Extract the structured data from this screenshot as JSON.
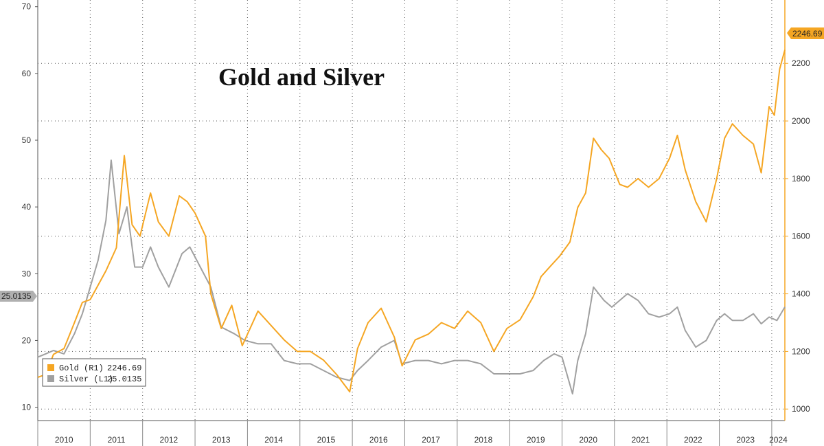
{
  "chart_data": {
    "type": "line",
    "title": "Gold and Silver",
    "x_categories": [
      "2010",
      "2011",
      "2012",
      "2013",
      "2014",
      "2015",
      "2016",
      "2017",
      "2018",
      "2019",
      "2020",
      "2021",
      "2022",
      "2023",
      "2024"
    ],
    "x_range": [
      2010,
      2024.25
    ],
    "left_axis": {
      "label": "",
      "ylim": [
        8,
        71
      ],
      "ticks": [
        10,
        20,
        30,
        40,
        50,
        60,
        70
      ]
    },
    "right_axis": {
      "label": "",
      "ylim": [
        960,
        2420
      ],
      "ticks": [
        1000,
        1200,
        1400,
        1600,
        1800,
        2000,
        2200
      ]
    },
    "legend_position": "bottom-left",
    "series": [
      {
        "name": "Gold (R1)",
        "axis": "right",
        "color": "#f5a623",
        "last_value": "2246.69",
        "x": [
          2010.0,
          2010.15,
          2010.3,
          2010.5,
          2010.7,
          2010.85,
          2011.0,
          2011.3,
          2011.5,
          2011.65,
          2011.8,
          2011.95,
          2012.15,
          2012.3,
          2012.5,
          2012.7,
          2012.85,
          2013.0,
          2013.2,
          2013.3,
          2013.5,
          2013.7,
          2013.9,
          2014.2,
          2014.45,
          2014.7,
          2014.95,
          2015.2,
          2015.45,
          2015.7,
          2015.95,
          2016.1,
          2016.3,
          2016.55,
          2016.8,
          2016.95,
          2017.2,
          2017.45,
          2017.7,
          2017.95,
          2018.2,
          2018.45,
          2018.7,
          2018.95,
          2019.2,
          2019.45,
          2019.6,
          2019.8,
          2019.95,
          2020.15,
          2020.3,
          2020.45,
          2020.6,
          2020.75,
          2020.9,
          2021.1,
          2021.25,
          2021.45,
          2021.65,
          2021.85,
          2022.05,
          2022.2,
          2022.35,
          2022.55,
          2022.75,
          2022.95,
          2023.1,
          2023.25,
          2023.45,
          2023.65,
          2023.8,
          2023.95,
          2024.05,
          2024.15,
          2024.25
        ],
        "values": [
          1110,
          1120,
          1190,
          1210,
          1300,
          1370,
          1380,
          1480,
          1560,
          1880,
          1640,
          1600,
          1750,
          1650,
          1600,
          1740,
          1720,
          1680,
          1600,
          1400,
          1280,
          1360,
          1220,
          1340,
          1290,
          1240,
          1200,
          1200,
          1170,
          1120,
          1060,
          1210,
          1300,
          1350,
          1250,
          1150,
          1240,
          1260,
          1300,
          1280,
          1340,
          1300,
          1200,
          1280,
          1310,
          1390,
          1460,
          1500,
          1530,
          1580,
          1700,
          1750,
          1940,
          1900,
          1870,
          1780,
          1770,
          1800,
          1770,
          1800,
          1870,
          1950,
          1830,
          1720,
          1650,
          1800,
          1940,
          1990,
          1950,
          1920,
          1820,
          2050,
          2020,
          2180,
          2246.69
        ]
      },
      {
        "name": "Silver (L1)",
        "axis": "left",
        "color": "#a0a0a0",
        "last_value": "25.0135",
        "x": [
          2010.0,
          2010.15,
          2010.3,
          2010.5,
          2010.7,
          2010.85,
          2011.0,
          2011.15,
          2011.3,
          2011.4,
          2011.55,
          2011.7,
          2011.85,
          2012.0,
          2012.15,
          2012.3,
          2012.5,
          2012.75,
          2012.9,
          2013.1,
          2013.3,
          2013.5,
          2013.75,
          2013.95,
          2014.2,
          2014.45,
          2014.7,
          2014.95,
          2015.2,
          2015.45,
          2015.7,
          2015.95,
          2016.1,
          2016.3,
          2016.55,
          2016.8,
          2016.95,
          2017.2,
          2017.45,
          2017.7,
          2017.95,
          2018.2,
          2018.45,
          2018.7,
          2018.95,
          2019.2,
          2019.45,
          2019.65,
          2019.85,
          2020.0,
          2020.2,
          2020.3,
          2020.45,
          2020.6,
          2020.8,
          2020.95,
          2021.1,
          2021.25,
          2021.45,
          2021.65,
          2021.85,
          2022.05,
          2022.2,
          2022.35,
          2022.55,
          2022.75,
          2022.95,
          2023.1,
          2023.25,
          2023.45,
          2023.65,
          2023.8,
          2023.95,
          2024.1,
          2024.25
        ],
        "values": [
          17.5,
          18,
          18.5,
          18,
          21,
          24,
          28,
          32,
          38,
          47,
          36,
          40,
          31,
          31,
          34,
          31,
          28,
          33,
          34,
          31,
          28,
          22,
          21,
          20,
          19.5,
          19.5,
          17,
          16.5,
          16.5,
          15.5,
          14.5,
          14,
          15.5,
          17,
          19,
          20,
          16.5,
          17,
          17,
          16.5,
          17,
          17,
          16.5,
          15,
          15,
          15,
          15.5,
          17,
          18,
          17.5,
          12,
          17,
          21,
          28,
          26,
          25,
          26,
          27,
          26,
          24,
          23.5,
          24,
          25,
          21.5,
          19,
          20,
          23,
          24,
          23,
          23,
          24,
          22.5,
          23.5,
          23,
          25.0135
        ]
      }
    ]
  },
  "legend": {
    "gold_label": "Gold (R1)",
    "gold_value": "2246.69",
    "silver_label": "Silver (L1)",
    "silver_value": "25.0135"
  },
  "tags": {
    "gold_last": "2246.69",
    "silver_last": "25.0135"
  },
  "colors": {
    "gold": "#f5a623",
    "silver": "#a0a0a0",
    "gold_tag_bg": "#f5a623",
    "silver_tag_bg": "#b0b0b0",
    "grid": "#555555"
  }
}
